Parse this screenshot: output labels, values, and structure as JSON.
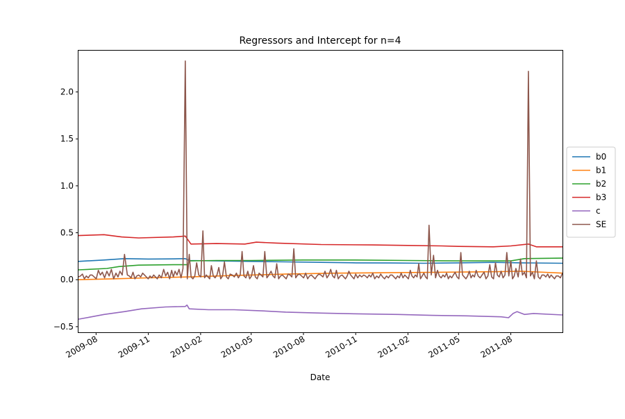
{
  "chart_data": {
    "type": "line",
    "title": "Regressors and Intercept for n=4",
    "xlabel": "Date",
    "ylabel": "",
    "x_range": [
      "2009-07-01",
      "2011-10-31"
    ],
    "ylim": [
      -0.56,
      2.44
    ],
    "x_ticks": [
      {
        "date": "2009-08-01",
        "label": "2009-08"
      },
      {
        "date": "2009-11-01",
        "label": "2009-11"
      },
      {
        "date": "2010-02-01",
        "label": "2010-02"
      },
      {
        "date": "2010-05-01",
        "label": "2010-05"
      },
      {
        "date": "2010-08-01",
        "label": "2010-08"
      },
      {
        "date": "2010-11-01",
        "label": "2010-11"
      },
      {
        "date": "2011-02-01",
        "label": "2011-02"
      },
      {
        "date": "2011-05-01",
        "label": "2011-05"
      },
      {
        "date": "2011-08-01",
        "label": "2011-08"
      }
    ],
    "y_ticks": [
      {
        "value": -0.5,
        "label": "−0.5"
      },
      {
        "value": 0.0,
        "label": "0.0"
      },
      {
        "value": 0.5,
        "label": "0.5"
      },
      {
        "value": 1.0,
        "label": "1.0"
      },
      {
        "value": 1.5,
        "label": "1.5"
      },
      {
        "value": 2.0,
        "label": "2.0"
      }
    ],
    "grid": false,
    "legend": "outside-right",
    "series": [
      {
        "name": "b0",
        "color": "#1f77b4",
        "points": [
          [
            "2009-07-01",
            0.195
          ],
          [
            "2009-08-15",
            0.21
          ],
          [
            "2009-09-20",
            0.225
          ],
          [
            "2009-11-01",
            0.22
          ],
          [
            "2009-12-15",
            0.222
          ],
          [
            "2010-01-05",
            0.225
          ],
          [
            "2010-01-12",
            0.205
          ],
          [
            "2010-03-01",
            0.2
          ],
          [
            "2010-05-01",
            0.195
          ],
          [
            "2010-07-01",
            0.19
          ],
          [
            "2010-09-01",
            0.185
          ],
          [
            "2010-11-01",
            0.18
          ],
          [
            "2011-01-01",
            0.178
          ],
          [
            "2011-03-01",
            0.175
          ],
          [
            "2011-05-01",
            0.18
          ],
          [
            "2011-07-01",
            0.185
          ],
          [
            "2011-08-20",
            0.18
          ],
          [
            "2011-10-31",
            0.175
          ]
        ]
      },
      {
        "name": "b1",
        "color": "#ff7f0e",
        "points": [
          [
            "2009-07-01",
            0.0
          ],
          [
            "2009-09-01",
            0.01
          ],
          [
            "2009-11-01",
            0.02
          ],
          [
            "2010-01-12",
            0.03
          ],
          [
            "2010-04-01",
            0.045
          ],
          [
            "2010-07-01",
            0.06
          ],
          [
            "2010-10-01",
            0.07
          ],
          [
            "2011-01-01",
            0.075
          ],
          [
            "2011-04-01",
            0.08
          ],
          [
            "2011-07-01",
            0.085
          ],
          [
            "2011-08-20",
            0.09
          ],
          [
            "2011-10-31",
            0.07
          ]
        ]
      },
      {
        "name": "b2",
        "color": "#2ca02c",
        "points": [
          [
            "2009-07-01",
            0.105
          ],
          [
            "2009-08-20",
            0.12
          ],
          [
            "2009-09-10",
            0.14
          ],
          [
            "2009-10-15",
            0.155
          ],
          [
            "2009-12-15",
            0.16
          ],
          [
            "2010-01-10",
            0.16
          ],
          [
            "2010-01-12",
            0.2
          ],
          [
            "2010-03-01",
            0.205
          ],
          [
            "2010-05-01",
            0.205
          ],
          [
            "2010-08-01",
            0.21
          ],
          [
            "2010-11-01",
            0.21
          ],
          [
            "2011-02-01",
            0.205
          ],
          [
            "2011-05-01",
            0.2
          ],
          [
            "2011-08-01",
            0.2
          ],
          [
            "2011-08-25",
            0.225
          ],
          [
            "2011-10-31",
            0.23
          ]
        ]
      },
      {
        "name": "b3",
        "color": "#d62728",
        "points": [
          [
            "2009-07-01",
            0.47
          ],
          [
            "2009-08-15",
            0.48
          ],
          [
            "2009-09-15",
            0.455
          ],
          [
            "2009-10-15",
            0.445
          ],
          [
            "2009-12-15",
            0.455
          ],
          [
            "2010-01-05",
            0.465
          ],
          [
            "2010-01-15",
            0.38
          ],
          [
            "2010-03-01",
            0.385
          ],
          [
            "2010-04-20",
            0.38
          ],
          [
            "2010-05-10",
            0.4
          ],
          [
            "2010-06-15",
            0.39
          ],
          [
            "2010-09-01",
            0.375
          ],
          [
            "2010-12-01",
            0.37
          ],
          [
            "2011-02-01",
            0.365
          ],
          [
            "2011-04-01",
            0.36
          ],
          [
            "2011-05-01",
            0.355
          ],
          [
            "2011-07-01",
            0.35
          ],
          [
            "2011-08-01",
            0.36
          ],
          [
            "2011-09-01",
            0.38
          ],
          [
            "2011-09-15",
            0.35
          ],
          [
            "2011-10-31",
            0.35
          ]
        ]
      },
      {
        "name": "c",
        "color": "#9467bd",
        "points": [
          [
            "2009-07-01",
            -0.42
          ],
          [
            "2009-07-20",
            -0.4
          ],
          [
            "2009-08-15",
            -0.37
          ],
          [
            "2009-09-20",
            -0.34
          ],
          [
            "2009-10-20",
            -0.31
          ],
          [
            "2009-12-01",
            -0.29
          ],
          [
            "2010-01-05",
            -0.285
          ],
          [
            "2010-01-08",
            -0.27
          ],
          [
            "2010-01-12",
            -0.31
          ],
          [
            "2010-02-15",
            -0.32
          ],
          [
            "2010-04-01",
            -0.32
          ],
          [
            "2010-05-15",
            -0.33
          ],
          [
            "2010-07-01",
            -0.345
          ],
          [
            "2010-09-01",
            -0.355
          ],
          [
            "2010-11-15",
            -0.365
          ],
          [
            "2011-01-15",
            -0.37
          ],
          [
            "2011-03-15",
            -0.38
          ],
          [
            "2011-05-15",
            -0.385
          ],
          [
            "2011-07-15",
            -0.395
          ],
          [
            "2011-07-28",
            -0.405
          ],
          [
            "2011-08-05",
            -0.36
          ],
          [
            "2011-08-12",
            -0.34
          ],
          [
            "2011-08-25",
            -0.37
          ],
          [
            "2011-09-10",
            -0.36
          ],
          [
            "2011-10-31",
            -0.375
          ]
        ]
      },
      {
        "name": "SE",
        "color": "#8c564b",
        "baseline": 0.02,
        "spikes": [
          [
            "2009-07-08",
            0.06
          ],
          [
            "2009-07-25",
            0.05
          ],
          [
            "2009-08-05",
            0.1
          ],
          [
            "2009-08-12",
            0.08
          ],
          [
            "2009-08-20",
            0.09
          ],
          [
            "2009-08-28",
            0.11
          ],
          [
            "2009-09-05",
            0.07
          ],
          [
            "2009-09-12",
            0.09
          ],
          [
            "2009-09-20",
            0.27
          ],
          [
            "2009-09-25",
            0.05
          ],
          [
            "2009-10-05",
            0.08
          ],
          [
            "2009-10-15",
            0.05
          ],
          [
            "2009-10-22",
            0.07
          ],
          [
            "2009-11-20",
            0.05
          ],
          [
            "2009-11-28",
            0.11
          ],
          [
            "2009-12-05",
            0.08
          ],
          [
            "2009-12-12",
            0.1
          ],
          [
            "2009-12-18",
            0.09
          ],
          [
            "2009-12-25",
            0.11
          ],
          [
            "2010-01-01",
            0.12
          ],
          [
            "2010-01-05",
            2.33
          ],
          [
            "2010-01-12",
            0.27
          ],
          [
            "2010-01-25",
            0.18
          ],
          [
            "2010-02-05",
            0.52
          ],
          [
            "2010-02-20",
            0.15
          ],
          [
            "2010-03-05",
            0.13
          ],
          [
            "2010-03-15",
            0.19
          ],
          [
            "2010-03-25",
            0.06
          ],
          [
            "2010-04-05",
            0.07
          ],
          [
            "2010-04-15",
            0.3
          ],
          [
            "2010-04-25",
            0.09
          ],
          [
            "2010-05-05",
            0.15
          ],
          [
            "2010-05-15",
            0.07
          ],
          [
            "2010-05-25",
            0.3
          ],
          [
            "2010-06-05",
            0.09
          ],
          [
            "2010-06-15",
            0.17
          ],
          [
            "2010-06-25",
            0.05
          ],
          [
            "2010-07-05",
            0.06
          ],
          [
            "2010-07-15",
            0.33
          ],
          [
            "2010-07-25",
            0.06
          ],
          [
            "2010-08-05",
            0.07
          ],
          [
            "2010-08-15",
            0.05
          ],
          [
            "2010-08-28",
            0.06
          ],
          [
            "2010-09-08",
            0.09
          ],
          [
            "2010-09-18",
            0.11
          ],
          [
            "2010-09-28",
            0.1
          ],
          [
            "2010-10-08",
            0.05
          ],
          [
            "2010-10-20",
            0.09
          ],
          [
            "2010-11-01",
            0.06
          ],
          [
            "2010-11-15",
            0.05
          ],
          [
            "2010-12-01",
            0.07
          ],
          [
            "2010-12-15",
            0.06
          ],
          [
            "2011-01-01",
            0.05
          ],
          [
            "2011-01-20",
            0.07
          ],
          [
            "2011-02-05",
            0.1
          ],
          [
            "2011-02-20",
            0.17
          ],
          [
            "2011-03-01",
            0.07
          ],
          [
            "2011-03-10",
            0.58
          ],
          [
            "2011-03-18",
            0.26
          ],
          [
            "2011-03-25",
            0.1
          ],
          [
            "2011-04-10",
            0.07
          ],
          [
            "2011-04-25",
            0.08
          ],
          [
            "2011-05-05",
            0.29
          ],
          [
            "2011-05-20",
            0.09
          ],
          [
            "2011-06-01",
            0.1
          ],
          [
            "2011-06-15",
            0.08
          ],
          [
            "2011-06-25",
            0.16
          ],
          [
            "2011-07-05",
            0.18
          ],
          [
            "2011-07-15",
            0.09
          ],
          [
            "2011-07-25",
            0.29
          ],
          [
            "2011-08-01",
            0.2
          ],
          [
            "2011-08-10",
            0.12
          ],
          [
            "2011-08-18",
            0.22
          ],
          [
            "2011-08-25",
            0.08
          ],
          [
            "2011-09-01",
            2.22
          ],
          [
            "2011-09-08",
            0.08
          ],
          [
            "2011-09-15",
            0.2
          ],
          [
            "2011-09-25",
            0.05
          ],
          [
            "2011-10-05",
            0.06
          ],
          [
            "2011-10-20",
            0.04
          ],
          [
            "2011-10-31",
            0.07
          ]
        ]
      }
    ]
  }
}
